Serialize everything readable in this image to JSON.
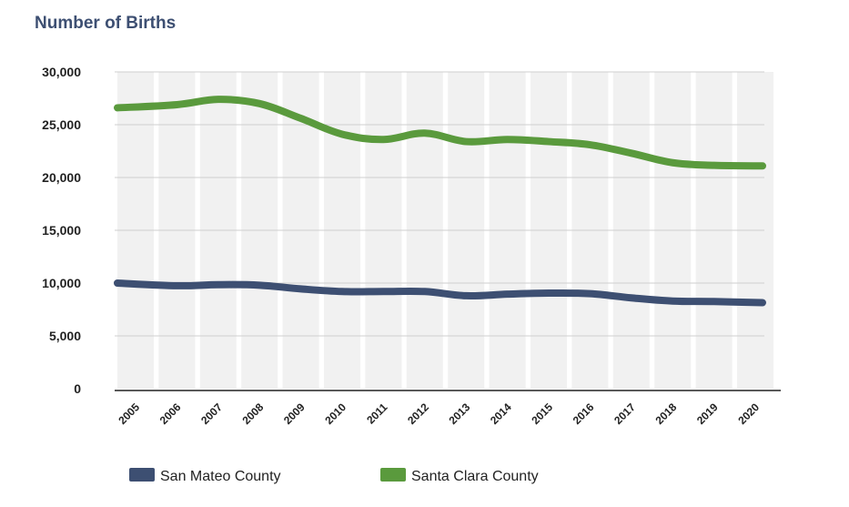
{
  "chart_data": {
    "type": "line",
    "title": "Number of Births",
    "xlabel": "",
    "ylabel": "",
    "ylim": [
      0,
      30000
    ],
    "yticks": [
      "0",
      "5,000",
      "10,000",
      "15,000",
      "20,000",
      "25,000",
      "30,000"
    ],
    "ytick_values": [
      0,
      5000,
      10000,
      15000,
      20000,
      25000,
      30000
    ],
    "categories": [
      "2005",
      "2006",
      "2007",
      "2008",
      "2009",
      "2010",
      "2011",
      "2012",
      "2013",
      "2014",
      "2015",
      "2016",
      "2017",
      "2018",
      "2019",
      "2020"
    ],
    "grid": "horizontal",
    "legend_position": "bottom",
    "series": [
      {
        "name": "San Mateo County",
        "color": "#3d4f72",
        "values": [
          10000,
          9750,
          9850,
          9800,
          9450,
          9200,
          9200,
          9200,
          8800,
          8950,
          9050,
          9000,
          8600,
          8300,
          8250,
          8150
        ]
      },
      {
        "name": "Santa Clara County",
        "color": "#5a9a3d",
        "values": [
          26600,
          26900,
          27400,
          27000,
          25600,
          24100,
          23600,
          24200,
          23400,
          23600,
          23400,
          23100,
          22300,
          21400,
          21150,
          21100
        ]
      }
    ]
  }
}
